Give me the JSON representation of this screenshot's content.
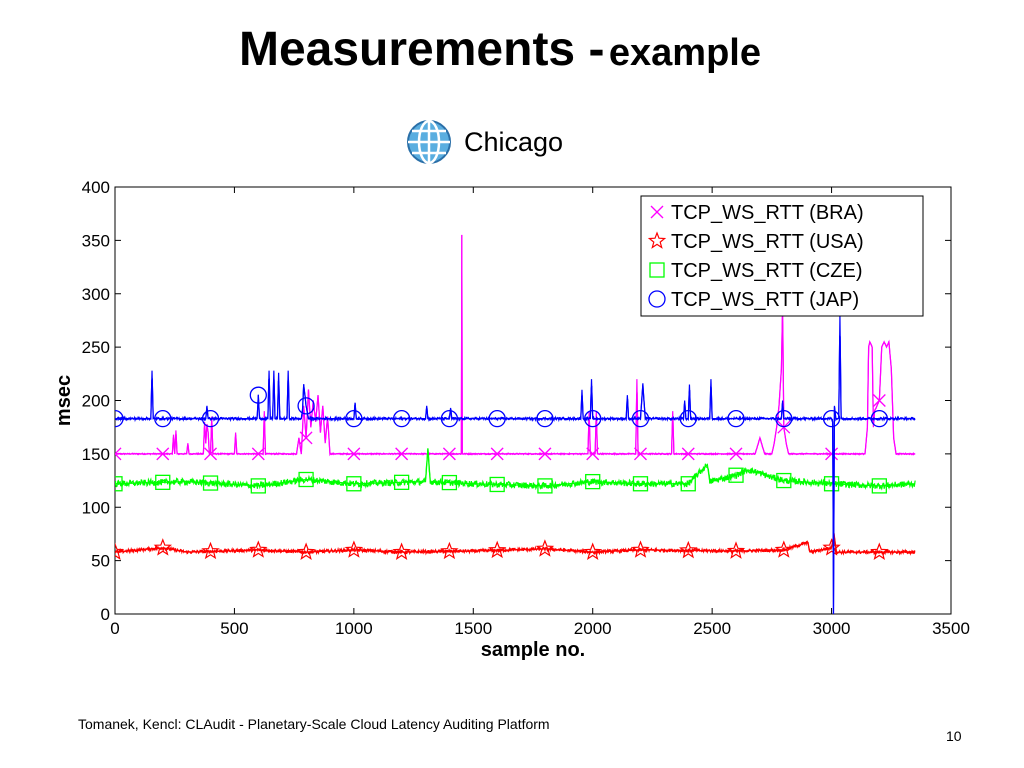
{
  "slide": {
    "title_main": "Measurements -",
    "title_sub": "example",
    "location_label": "Chicago",
    "location_icon": "globe-icon",
    "footer": "Tomanek, Kencl: CLAudit - Planetary-Scale Cloud Latency Auditing Platform",
    "page_number": "10"
  },
  "chart_data": {
    "type": "line",
    "xlabel": "sample no.",
    "ylabel": "msec",
    "xlim": [
      0,
      3500
    ],
    "ylim": [
      0,
      400
    ],
    "xticks": [
      0,
      500,
      1000,
      1500,
      2000,
      2500,
      3000,
      3500
    ],
    "yticks": [
      0,
      50,
      100,
      150,
      200,
      250,
      300,
      350,
      400
    ],
    "grid": false,
    "legend_position": "top-right",
    "sample_count": 3350,
    "marker_x": [
      0,
      200,
      400,
      600,
      800,
      1000,
      1200,
      1400,
      1600,
      1800,
      2000,
      2200,
      2400,
      2600,
      2800,
      3000,
      3200
    ],
    "series": [
      {
        "name": "TCP_WS_RTT (BRA)",
        "color": "#ff00ff",
        "marker": "x",
        "baseline": 150,
        "points": [
          [
            0,
            150
          ],
          [
            150,
            150
          ],
          [
            240,
            150
          ],
          [
            245,
            168
          ],
          [
            250,
            150
          ],
          [
            255,
            172
          ],
          [
            260,
            150
          ],
          [
            300,
            150
          ],
          [
            305,
            160
          ],
          [
            310,
            150
          ],
          [
            370,
            150
          ],
          [
            375,
            180
          ],
          [
            380,
            160
          ],
          [
            385,
            178
          ],
          [
            390,
            170
          ],
          [
            395,
            150
          ],
          [
            400,
            150
          ],
          [
            405,
            185
          ],
          [
            410,
            150
          ],
          [
            500,
            150
          ],
          [
            505,
            170
          ],
          [
            510,
            150
          ],
          [
            620,
            150
          ],
          [
            625,
            190
          ],
          [
            630,
            150
          ],
          [
            760,
            150
          ],
          [
            770,
            165
          ],
          [
            780,
            150
          ],
          [
            790,
            195
          ],
          [
            800,
            165
          ],
          [
            810,
            210
          ],
          [
            820,
            175
          ],
          [
            830,
            200
          ],
          [
            840,
            180
          ],
          [
            850,
            205
          ],
          [
            860,
            170
          ],
          [
            870,
            195
          ],
          [
            880,
            160
          ],
          [
            890,
            185
          ],
          [
            900,
            150
          ],
          [
            1450,
            150
          ],
          [
            1452,
            355
          ],
          [
            1454,
            150
          ],
          [
            1980,
            150
          ],
          [
            1985,
            190
          ],
          [
            1990,
            150
          ],
          [
            2010,
            150
          ],
          [
            2015,
            190
          ],
          [
            2020,
            150
          ],
          [
            2180,
            150
          ],
          [
            2185,
            220
          ],
          [
            2190,
            150
          ],
          [
            2330,
            150
          ],
          [
            2335,
            190
          ],
          [
            2340,
            150
          ],
          [
            2680,
            150
          ],
          [
            2700,
            165
          ],
          [
            2720,
            150
          ],
          [
            2750,
            150
          ],
          [
            2760,
            160
          ],
          [
            2770,
            175
          ],
          [
            2780,
            195
          ],
          [
            2790,
            230
          ],
          [
            2795,
            290
          ],
          [
            2800,
            175
          ],
          [
            2810,
            160
          ],
          [
            2820,
            150
          ],
          [
            3140,
            150
          ],
          [
            3150,
            175
          ],
          [
            3155,
            250
          ],
          [
            3160,
            255
          ],
          [
            3170,
            250
          ],
          [
            3175,
            175
          ],
          [
            3180,
            190
          ],
          [
            3200,
            200
          ],
          [
            3210,
            250
          ],
          [
            3220,
            255
          ],
          [
            3230,
            250
          ],
          [
            3240,
            255
          ],
          [
            3250,
            230
          ],
          [
            3260,
            165
          ],
          [
            3270,
            150
          ],
          [
            3350,
            150
          ]
        ]
      },
      {
        "name": "TCP_WS_RTT (USA)",
        "color": "#ff0000",
        "marker": "star",
        "baseline": 58,
        "points": [
          [
            0,
            58
          ],
          [
            200,
            62
          ],
          [
            300,
            58
          ],
          [
            600,
            60
          ],
          [
            800,
            58
          ],
          [
            1000,
            60
          ],
          [
            1200,
            58
          ],
          [
            1500,
            59
          ],
          [
            1800,
            61
          ],
          [
            2000,
            58
          ],
          [
            2200,
            60
          ],
          [
            2600,
            59
          ],
          [
            2800,
            60
          ],
          [
            2900,
            67
          ],
          [
            2910,
            58
          ],
          [
            3000,
            62
          ],
          [
            3010,
            76
          ],
          [
            3020,
            58
          ],
          [
            3200,
            58
          ],
          [
            3350,
            58
          ]
        ]
      },
      {
        "name": "TCP_WS_RTT (CZE)",
        "color": "#00ff00",
        "marker": "square",
        "baseline": 122,
        "points": [
          [
            0,
            122
          ],
          [
            300,
            124
          ],
          [
            600,
            120
          ],
          [
            800,
            126
          ],
          [
            1000,
            122
          ],
          [
            1300,
            124
          ],
          [
            1310,
            155
          ],
          [
            1320,
            124
          ],
          [
            1500,
            122
          ],
          [
            1800,
            120
          ],
          [
            2000,
            124
          ],
          [
            2200,
            122
          ],
          [
            2400,
            122
          ],
          [
            2480,
            140
          ],
          [
            2490,
            124
          ],
          [
            2600,
            130
          ],
          [
            2650,
            135
          ],
          [
            2700,
            132
          ],
          [
            2750,
            128
          ],
          [
            2800,
            125
          ],
          [
            3000,
            122
          ],
          [
            3200,
            120
          ],
          [
            3350,
            122
          ]
        ]
      },
      {
        "name": "TCP_WS_RTT (JAP)",
        "color": "#0000ff",
        "marker": "circle",
        "baseline": 183,
        "points": [
          [
            0,
            183
          ],
          [
            150,
            183
          ],
          [
            155,
            228
          ],
          [
            160,
            183
          ],
          [
            380,
            183
          ],
          [
            385,
            195
          ],
          [
            390,
            183
          ],
          [
            595,
            183
          ],
          [
            600,
            205
          ],
          [
            605,
            183
          ],
          [
            640,
            183
          ],
          [
            645,
            228
          ],
          [
            650,
            183
          ],
          [
            660,
            183
          ],
          [
            665,
            228
          ],
          [
            670,
            183
          ],
          [
            680,
            183
          ],
          [
            685,
            226
          ],
          [
            690,
            183
          ],
          [
            720,
            183
          ],
          [
            725,
            228
          ],
          [
            730,
            183
          ],
          [
            780,
            183
          ],
          [
            785,
            190
          ],
          [
            790,
            215
          ],
          [
            800,
            195
          ],
          [
            810,
            183
          ],
          [
            1000,
            183
          ],
          [
            1005,
            198
          ],
          [
            1010,
            183
          ],
          [
            1300,
            183
          ],
          [
            1305,
            195
          ],
          [
            1310,
            183
          ],
          [
            1400,
            183
          ],
          [
            1405,
            193
          ],
          [
            1410,
            183
          ],
          [
            1950,
            183
          ],
          [
            1955,
            210
          ],
          [
            1960,
            183
          ],
          [
            1990,
            183
          ],
          [
            1995,
            220
          ],
          [
            2000,
            183
          ],
          [
            2140,
            183
          ],
          [
            2145,
            205
          ],
          [
            2150,
            183
          ],
          [
            2200,
            183
          ],
          [
            2210,
            215
          ],
          [
            2220,
            183
          ],
          [
            2380,
            183
          ],
          [
            2385,
            200
          ],
          [
            2390,
            183
          ],
          [
            2400,
            183
          ],
          [
            2405,
            215
          ],
          [
            2410,
            183
          ],
          [
            2490,
            183
          ],
          [
            2495,
            220
          ],
          [
            2500,
            183
          ],
          [
            2790,
            183
          ],
          [
            2795,
            200
          ],
          [
            2800,
            183
          ],
          [
            3000,
            183
          ],
          [
            3005,
            180
          ],
          [
            3008,
            0
          ],
          [
            3012,
            195
          ],
          [
            3018,
            183
          ],
          [
            3030,
            183
          ],
          [
            3035,
            280
          ],
          [
            3040,
            183
          ],
          [
            3100,
            183
          ],
          [
            3350,
            183
          ]
        ]
      }
    ]
  }
}
